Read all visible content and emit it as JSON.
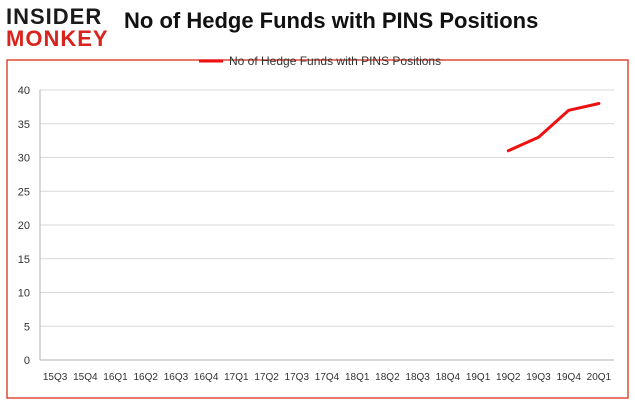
{
  "logo": {
    "line1": "INSIDER",
    "line2": "MONKEY"
  },
  "colors": {
    "series": "#ee1111",
    "brand_red": "#d9231d",
    "grid": "#d9d9d9",
    "border": "#e04a3a"
  },
  "chart_data": {
    "type": "line",
    "title": "No of Hedge Funds with PINS Positions",
    "xlabel": "",
    "ylabel": "",
    "ylim": [
      0,
      40
    ],
    "yticks": [
      0,
      5,
      10,
      15,
      20,
      25,
      30,
      35,
      40
    ],
    "grid": "horizontal",
    "legend_position": "top-center",
    "categories": [
      "15Q3",
      "15Q4",
      "16Q1",
      "16Q2",
      "16Q3",
      "16Q4",
      "17Q1",
      "17Q2",
      "17Q3",
      "17Q4",
      "18Q1",
      "18Q2",
      "18Q3",
      "18Q4",
      "19Q1",
      "19Q2",
      "19Q3",
      "19Q4",
      "20Q1"
    ],
    "series": [
      {
        "name": "No of Hedge Funds with PINS Positions",
        "values": [
          null,
          null,
          null,
          null,
          null,
          null,
          null,
          null,
          null,
          null,
          null,
          null,
          null,
          null,
          null,
          31,
          33,
          37,
          38
        ]
      }
    ]
  }
}
